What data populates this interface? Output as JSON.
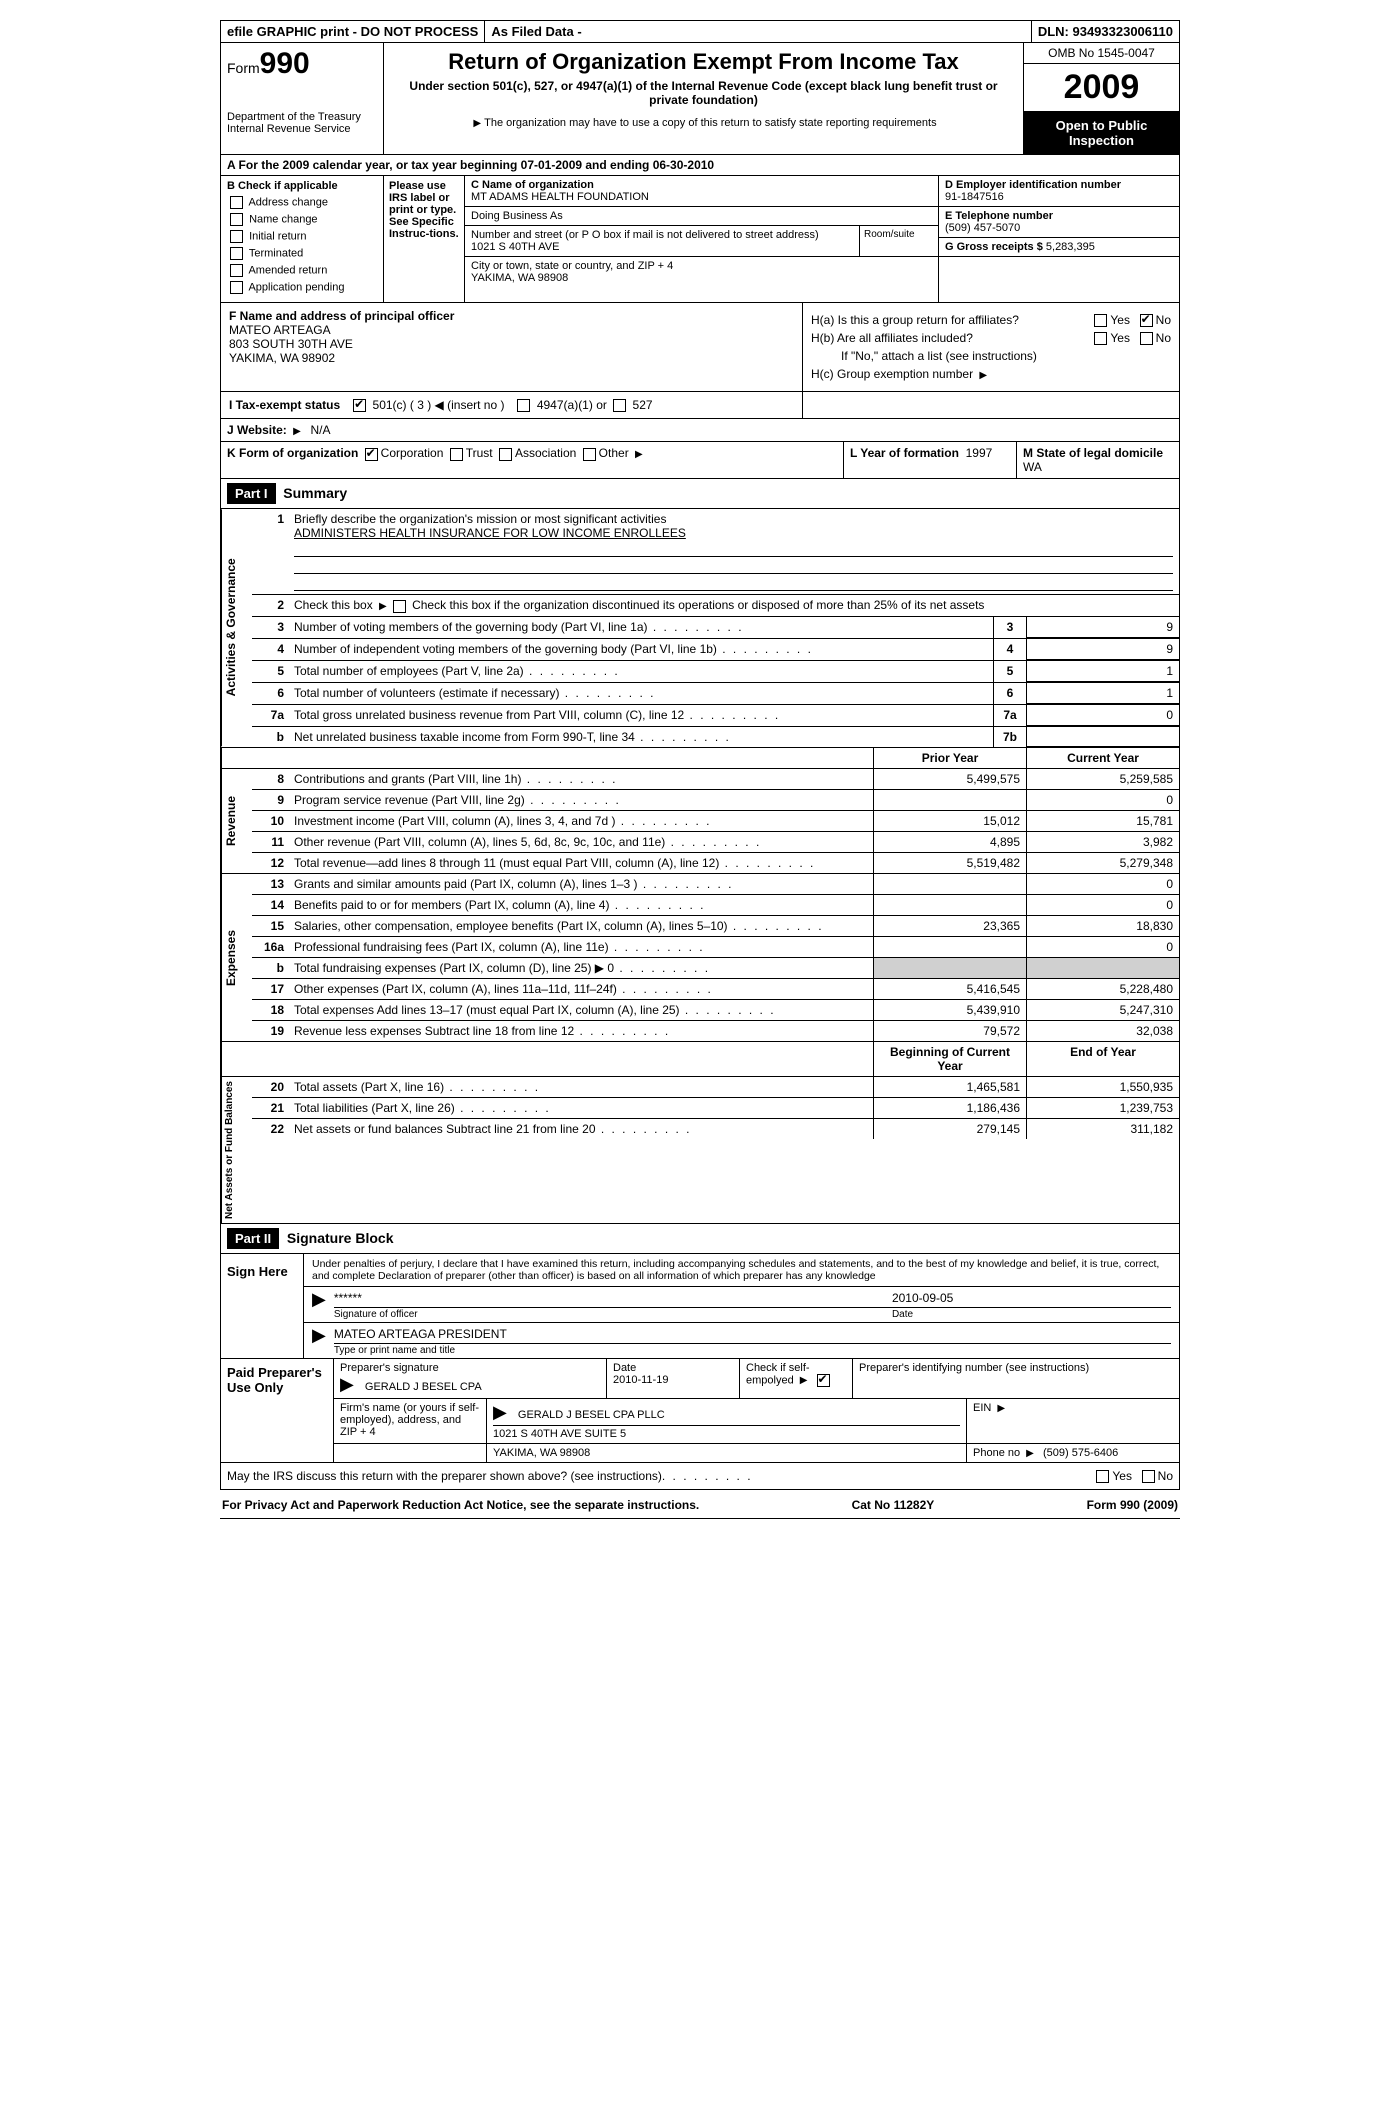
{
  "meta": {
    "topbar": {
      "efile": "efile GRAPHIC print - DO NOT PROCESS",
      "asfiled": "As Filed Data -",
      "dln_label": "DLN:",
      "dln": "93493323006110"
    },
    "form_label": "Form",
    "form_no": "990",
    "title": "Return of Organization Exempt From Income Tax",
    "subtitle": "Under section 501(c), 527, or 4947(a)(1) of the Internal Revenue Code (except black lung benefit trust or private foundation)",
    "copy_note": "The organization may have to use a copy of this return to satisfy state reporting requirements",
    "dept1": "Department of the Treasury",
    "dept2": "Internal Revenue Service",
    "omb": "OMB No 1545-0047",
    "year": "2009",
    "open": "Open to Public Inspection",
    "line_a": "A  For the 2009  calendar year, or tax year beginning 07-01-2009     and ending 06-30-2010"
  },
  "b": {
    "header": "B  Check if applicable",
    "items": [
      "Address change",
      "Name change",
      "Initial return",
      "Terminated",
      "Amended return",
      "Application pending"
    ]
  },
  "irs_box": "Please use IRS label or print or type. See Specific Instruc-tions.",
  "c": {
    "name_label": "C Name of organization",
    "name": "MT ADAMS HEALTH FOUNDATION",
    "dba_label": "Doing Business As",
    "dba": "",
    "street_label": "Number and street (or P O  box if mail is not delivered to street address)",
    "room_label": "Room/suite",
    "street": "1021 S 40TH AVE",
    "city_label": "City or town, state or country, and ZIP + 4",
    "city": "YAKIMA, WA  98908"
  },
  "d": {
    "ein_label": "D Employer identification number",
    "ein": "91-1847516",
    "tel_label": "E Telephone number",
    "tel": "(509) 457-5070",
    "gross_label": "G Gross receipts $",
    "gross": "5,283,395"
  },
  "f": {
    "label": "F   Name and address of principal officer",
    "name": "MATEO ARTEAGA",
    "addr1": "803 SOUTH 30TH AVE",
    "addr2": "YAKIMA, WA  98902"
  },
  "h": {
    "a": "H(a)  Is this a group return for affiliates?",
    "b": "H(b)  Are all affiliates included?",
    "b_note": "If \"No,\" attach a list  (see instructions)",
    "c": "H(c)   Group exemption number"
  },
  "i": {
    "label": "I   Tax-exempt status",
    "opt1": "501(c) ( 3 )",
    "insert": "(insert no )",
    "opt2": "4947(a)(1) or",
    "opt3": "527"
  },
  "j": {
    "label": "J  Website:",
    "val": "N/A"
  },
  "k": {
    "label": "K Form of organization",
    "opts": [
      "Corporation",
      "Trust",
      "Association",
      "Other"
    ]
  },
  "l": {
    "label": "L Year of formation",
    "val": "1997"
  },
  "m": {
    "label": "M State of legal domicile",
    "val": "WA"
  },
  "part1": {
    "hdr": "Part I",
    "title": "Summary",
    "l1": "Briefly describe the organization's mission or most significant activities",
    "l1val": "ADMINISTERS HEALTH INSURANCE FOR LOW INCOME ENROLLEES",
    "l2": "Check this box         if the organization discontinued its operations or disposed of more than 25% of its net assets",
    "rows_ag": [
      {
        "n": "3",
        "d": "Number of voting members of the governing body (Part VI, line 1a)",
        "c": "3",
        "v": "9"
      },
      {
        "n": "4",
        "d": "Number of independent voting members of the governing body (Part VI, line 1b)",
        "c": "4",
        "v": "9"
      },
      {
        "n": "5",
        "d": "Total number of employees (Part V, line 2a)",
        "c": "5",
        "v": "1"
      },
      {
        "n": "6",
        "d": "Total number of volunteers (estimate if necessary)",
        "c": "6",
        "v": "1"
      },
      {
        "n": "7a",
        "d": "Total gross unrelated business revenue from Part VIII, column (C), line 12",
        "c": "7a",
        "v": "0"
      },
      {
        "n": "b",
        "d": "Net unrelated business taxable income from Form 990-T, line 34",
        "c": "7b",
        "v": ""
      }
    ],
    "col_prior": "Prior Year",
    "col_curr": "Current Year",
    "revenue": [
      {
        "n": "8",
        "d": "Contributions and grants (Part VIII, line 1h)",
        "p": "5,499,575",
        "c": "5,259,585"
      },
      {
        "n": "9",
        "d": "Program service revenue (Part VIII, line 2g)",
        "p": "",
        "c": "0"
      },
      {
        "n": "10",
        "d": "Investment income (Part VIII, column (A), lines 3, 4, and 7d )",
        "p": "15,012",
        "c": "15,781"
      },
      {
        "n": "11",
        "d": "Other revenue (Part VIII, column (A), lines 5, 6d, 8c, 9c, 10c, and 11e)",
        "p": "4,895",
        "c": "3,982"
      },
      {
        "n": "12",
        "d": "Total revenue—add lines 8 through 11 (must equal Part VIII, column (A), line 12)",
        "p": "5,519,482",
        "c": "5,279,348"
      }
    ],
    "expenses": [
      {
        "n": "13",
        "d": "Grants and similar amounts paid (Part IX, column (A), lines 1–3 )",
        "p": "",
        "c": "0"
      },
      {
        "n": "14",
        "d": "Benefits paid to or for members (Part IX, column (A), line 4)",
        "p": "",
        "c": "0"
      },
      {
        "n": "15",
        "d": "Salaries, other compensation, employee benefits (Part IX, column (A), lines 5–10)",
        "p": "23,365",
        "c": "18,830"
      },
      {
        "n": "16a",
        "d": "Professional fundraising fees (Part IX, column (A), line 11e)",
        "p": "",
        "c": "0"
      },
      {
        "n": "b",
        "d": "Total fundraising expenses (Part IX, column (D), line 25) ▶ 0",
        "p": "grey",
        "c": "grey"
      },
      {
        "n": "17",
        "d": "Other expenses (Part IX, column (A), lines 11a–11d, 11f–24f)",
        "p": "5,416,545",
        "c": "5,228,480"
      },
      {
        "n": "18",
        "d": "Total expenses  Add lines 13–17 (must equal Part IX, column (A), line 25)",
        "p": "5,439,910",
        "c": "5,247,310"
      },
      {
        "n": "19",
        "d": "Revenue less expenses  Subtract line 18 from line 12",
        "p": "79,572",
        "c": "32,038"
      }
    ],
    "col_boy": "Beginning of Current Year",
    "col_eoy": "End of Year",
    "netassets": [
      {
        "n": "20",
        "d": "Total assets (Part X, line 16)",
        "p": "1,465,581",
        "c": "1,550,935"
      },
      {
        "n": "21",
        "d": "Total liabilities (Part X, line 26)",
        "p": "1,186,436",
        "c": "1,239,753"
      },
      {
        "n": "22",
        "d": "Net assets or fund balances  Subtract line 21 from line 20",
        "p": "279,145",
        "c": "311,182"
      }
    ]
  },
  "part2": {
    "hdr": "Part II",
    "title": "Signature Block",
    "perjury": "Under penalties of perjury, I declare that I have examined this return, including accompanying schedules and statements, and to the best of my knowledge and belief, it is true, correct, and complete  Declaration of preparer (other than officer) is based on all information of which preparer has any knowledge",
    "sign_here": "Sign Here",
    "sig_stars": "******",
    "sig_of_officer": "Signature of officer",
    "sig_date": "2010-09-05",
    "date_label": "Date",
    "officer_name": "MATEO ARTEAGA PRESIDENT",
    "type_label": "Type or print name and title",
    "paid": "Paid Preparer's Use Only",
    "prep_sig_label": "Preparer's signature",
    "prep_name": "GERALD J BESEL CPA",
    "prep_date_label": "Date",
    "prep_date": "2010-11-19",
    "self_label": "Check if self-empolyed",
    "ptin_label": "Preparer's identifying number (see instructions)",
    "firm_label": "Firm's name (or yours if self-employed), address, and ZIP + 4",
    "firm_name": "GERALD J BESEL CPA PLLC",
    "firm_addr1": "1021 S 40TH AVE SUITE 5",
    "firm_addr2": "YAKIMA, WA  98908",
    "ein_label": "EIN",
    "phone_label": "Phone no",
    "phone": "(509) 575-6406",
    "discuss": "May the IRS discuss this return with the preparer shown above? (see instructions)"
  },
  "footer": {
    "left": "For Privacy Act and Paperwork Reduction Act Notice, see the separate instructions.",
    "mid": "Cat No 11282Y",
    "right": "Form 990 (2009)"
  }
}
